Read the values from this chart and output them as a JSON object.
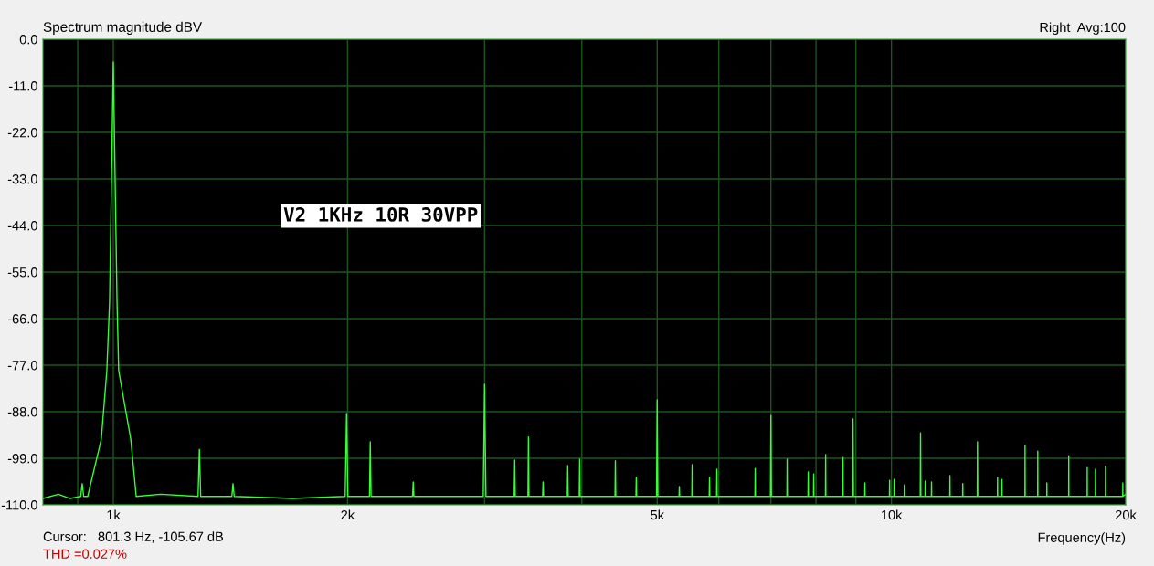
{
  "chart_data": {
    "type": "line",
    "title": "Spectrum magnitude dBV",
    "xlabel": "Frequency(Hz)",
    "log": "x",
    "grid": true,
    "legend": false,
    "marker": "none",
    "line_style": "solid",
    "xlim": [
      812,
      20000
    ],
    "ylim": [
      -110,
      0
    ],
    "xticks": [
      {
        "value": 900,
        "label": null
      },
      {
        "value": 1000,
        "label": "1k"
      },
      {
        "value": 2000,
        "label": "2k"
      },
      {
        "value": 3000,
        "label": null
      },
      {
        "value": 4000,
        "label": null
      },
      {
        "value": 5000,
        "label": "5k"
      },
      {
        "value": 6000,
        "label": null
      },
      {
        "value": 7000,
        "label": null
      },
      {
        "value": 8000,
        "label": null
      },
      {
        "value": 9000,
        "label": null
      },
      {
        "value": 10000,
        "label": "10k"
      },
      {
        "value": 20000,
        "label": "20k"
      }
    ],
    "yticks": [
      {
        "value": 0,
        "label": "0.0"
      },
      {
        "value": -11,
        "label": "-11.0"
      },
      {
        "value": -22,
        "label": "-22.0"
      },
      {
        "value": -33,
        "label": "-33.0"
      },
      {
        "value": -44,
        "label": "-44.0"
      },
      {
        "value": -55,
        "label": "-55.0"
      },
      {
        "value": -66,
        "label": "-66.0"
      },
      {
        "value": -77,
        "label": "-77.0"
      },
      {
        "value": -88,
        "label": "-88.0"
      },
      {
        "value": -99,
        "label": "-99.0"
      },
      {
        "value": -110,
        "label": "-110.0"
      }
    ],
    "annotations": [
      "V2 1KHz 10R 30VPP",
      "Right  Avg:100",
      "Cursor:   801.3 Hz, -105.67 dB",
      "THD =0.027%"
    ],
    "series": [
      {
        "color": "#33ff33",
        "x": [
          812,
          850,
          880,
          908,
          912,
          916,
          927,
          965,
          981,
          989,
          1000,
          1011,
          1016,
          1053,
          1070,
          1150,
          1285,
          1290,
          1295,
          1420,
          1425,
          1430,
          1700,
          1986,
          1994,
          2002,
          2134,
          2139,
          2144,
          2424,
          2429,
          2434,
          2988,
          3000,
          3012,
          3275,
          3280,
          3285,
          3411,
          3416,
          3421,
          3562,
          3567,
          3572,
          3832,
          3837,
          3842,
          3970,
          3975,
          3980,
          4413,
          4418,
          4423,
          4695,
          4700,
          4705,
          4990,
          5000,
          5010,
          5334,
          5339,
          5344,
          5540,
          5545,
          5550,
          5832,
          5837,
          5842,
          5960,
          5965,
          5970,
          6677,
          6682,
          6687,
          6990,
          7000,
          7010,
          7340,
          7345,
          7350,
          7812,
          7817,
          7822,
          7940,
          7945,
          7950,
          8226,
          8231,
          8236,
          8659,
          8664,
          8669,
          8915,
          8926,
          8937,
          9240,
          9245,
          9250,
          9941,
          9946,
          9951,
          10075,
          10080,
          10085,
          10385,
          10390,
          10395,
          10890,
          10900,
          10910,
          11045,
          11050,
          11055,
          11255,
          11260,
          11265,
          11885,
          11890,
          11895,
          12345,
          12350,
          12355,
          12890,
          12900,
          12910,
          13685,
          13690,
          13695,
          13865,
          13870,
          13875,
          14845,
          14850,
          14855,
          15415,
          15420,
          15425,
          15835,
          15840,
          15845,
          16895,
          16900,
          16905,
          17845,
          17850,
          17855,
          18285,
          18290,
          18295,
          18835,
          18840,
          18845,
          19825,
          19830,
          19835,
          20000
        ],
        "values": [
          -108.5,
          -107.5,
          -108.5,
          -108,
          -105.0,
          -108,
          -108,
          -94.5,
          -78.3,
          -62,
          -5.4,
          -62,
          -78.3,
          -94.5,
          -108,
          -107.5,
          -108,
          -96.9,
          -108,
          -108,
          -105.0,
          -108,
          -108.5,
          -108,
          -88.4,
          -108,
          -108,
          -95.1,
          -108,
          -108,
          -104.6,
          -108,
          -108,
          -81.5,
          -108,
          -108,
          -99.4,
          -108,
          -108,
          -94.0,
          -108,
          -108,
          -104.6,
          -108,
          -108,
          -100.7,
          -108,
          -108,
          -99.2,
          -108,
          -108,
          -99.6,
          -108,
          -108,
          -103.5,
          -108,
          -108,
          -85.2,
          -108,
          -108,
          -105.7,
          -108,
          -108,
          -100.5,
          -108,
          -108,
          -103.5,
          -108,
          -108,
          -101.6,
          -108,
          -108,
          -101.4,
          -108,
          -108,
          -88.9,
          -108,
          -108,
          -99.2,
          -108,
          -108,
          -102.2,
          -108,
          -108,
          -102.7,
          -108,
          -108,
          -98.1,
          -108,
          -108,
          -98.8,
          -108,
          -108,
          -89.7,
          -108,
          -108,
          -104.8,
          -108,
          -108,
          -104.2,
          -108,
          -108,
          -104.0,
          -108,
          -108,
          -105.3,
          -108,
          -108,
          -93.0,
          -108,
          -108,
          -104.4,
          -108,
          -108,
          -104.6,
          -108,
          -108,
          -103.1,
          -108,
          -108,
          -105.0,
          -108,
          -108,
          -95.1,
          -108,
          -108,
          -103.5,
          -108,
          -108,
          -104.0,
          -108,
          -108,
          -96.0,
          -108,
          -108,
          -97.3,
          -108,
          -108,
          -104.8,
          -108,
          -108,
          -98.4,
          -108,
          -108,
          -101.2,
          -108,
          -108,
          -101.6,
          -108,
          -108,
          -100.9,
          -108,
          -108,
          -104.8,
          -108,
          -107.5
        ]
      }
    ]
  }
}
